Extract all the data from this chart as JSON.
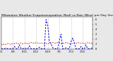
{
  "title": "Milwaukee Weather Evapotranspiration (Red) vs Rain (Blue) per Day (Inches)",
  "title_fontsize": 3.2,
  "background_color": "#e8e8e8",
  "plot_bg_color": "#ffffff",
  "red_color": "#cc0000",
  "blue_color": "#0000cc",
  "grid_color": "#888888",
  "ylim": [
    0,
    0.65
  ],
  "ytick_vals": [
    0.0,
    0.1,
    0.2,
    0.3,
    0.4,
    0.5,
    0.6
  ],
  "ytick_labels": [
    ".0",
    ".1",
    ".2",
    ".3",
    ".4",
    ".5",
    ".6"
  ],
  "num_points": 56,
  "rain": [
    0.0,
    0.0,
    0.0,
    0.02,
    0.0,
    0.0,
    0.0,
    0.0,
    0.05,
    0.0,
    0.0,
    0.08,
    0.0,
    0.0,
    0.02,
    0.0,
    0.0,
    0.06,
    0.0,
    0.0,
    0.0,
    0.0,
    0.0,
    0.03,
    0.0,
    0.0,
    0.0,
    0.6,
    0.48,
    0.15,
    0.1,
    0.02,
    0.0,
    0.0,
    0.0,
    0.18,
    0.3,
    0.0,
    0.0,
    0.02,
    0.0,
    0.0,
    0.15,
    0.22,
    0.12,
    0.0,
    0.0,
    0.0,
    0.05,
    0.0,
    0.0,
    0.08,
    0.0,
    0.0,
    0.0,
    0.03
  ],
  "et": [
    0.1,
    0.08,
    0.1,
    0.09,
    0.11,
    0.1,
    0.09,
    0.11,
    0.1,
    0.12,
    0.1,
    0.11,
    0.12,
    0.1,
    0.11,
    0.12,
    0.1,
    0.11,
    0.13,
    0.12,
    0.11,
    0.13,
    0.12,
    0.11,
    0.12,
    0.11,
    0.1,
    0.11,
    0.1,
    0.12,
    0.11,
    0.13,
    0.12,
    0.11,
    0.13,
    0.12,
    0.1,
    0.12,
    0.11,
    0.13,
    0.12,
    0.11,
    0.1,
    0.11,
    0.12,
    0.11,
    0.13,
    0.12,
    0.11,
    0.12,
    0.1,
    0.11,
    0.13,
    0.12,
    0.11,
    0.12
  ],
  "x_tick_positions": [
    0,
    7,
    14,
    21,
    28,
    35,
    42,
    49
  ],
  "x_tick_labels": [
    "6/1",
    "6/8",
    "6/15",
    "6/22",
    "6/29",
    "7/6",
    "7/13",
    "7/20"
  ],
  "grid_positions": [
    7,
    14,
    21,
    28,
    35,
    42,
    49
  ]
}
